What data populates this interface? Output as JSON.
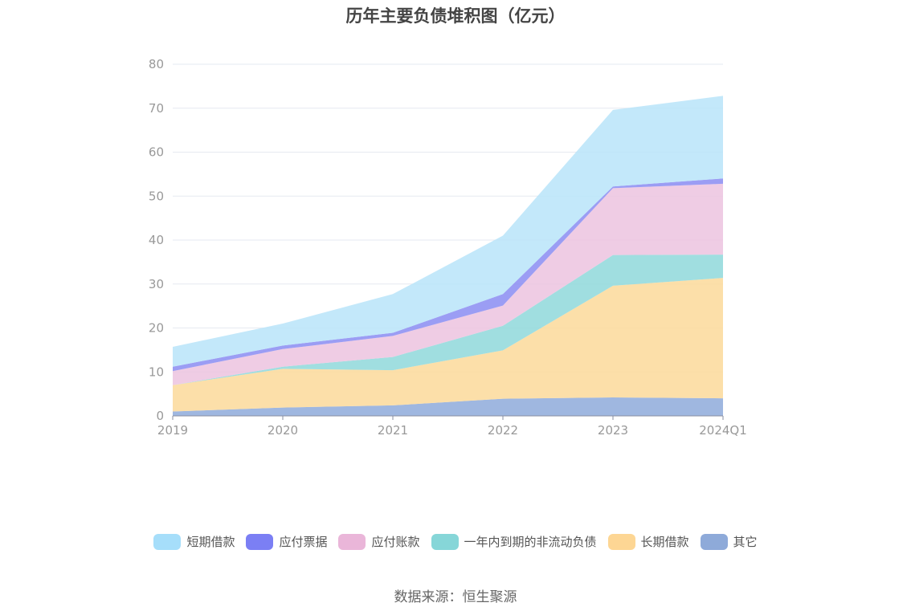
{
  "chart_data": {
    "type": "area",
    "stacked": true,
    "title": "历年主要负债堆积图（亿元）",
    "categories": [
      "2019",
      "2020",
      "2021",
      "2022",
      "2023",
      "2024Q1"
    ],
    "ylim": [
      0,
      80
    ],
    "yticks": [
      0,
      10,
      20,
      30,
      40,
      50,
      60,
      70,
      80
    ],
    "xlabel": "",
    "ylabel": "",
    "grid": true,
    "legend_position": "bottom",
    "series": [
      {
        "name": "其它",
        "color": "#8eaadb",
        "values": [
          1.0,
          1.9,
          2.4,
          3.9,
          4.2,
          4.0
        ]
      },
      {
        "name": "长期借款",
        "color": "#fcd99a",
        "values": [
          6.0,
          8.8,
          8.0,
          11.0,
          25.4,
          27.4
        ]
      },
      {
        "name": "一年内到期的非流动负债",
        "color": "#8fd8da",
        "values": [
          0.0,
          0.5,
          3.0,
          5.6,
          7.0,
          5.3
        ]
      },
      {
        "name": "应付账款",
        "color": "#ecc3df",
        "values": [
          3.2,
          4.0,
          4.8,
          4.6,
          15.2,
          16.1
        ]
      },
      {
        "name": "应付票据",
        "color": "#8a8cf2",
        "values": [
          1.0,
          0.8,
          0.7,
          2.6,
          0.4,
          1.2
        ]
      },
      {
        "name": "短期借款",
        "color": "#b8e4f9",
        "values": [
          4.5,
          5.0,
          8.8,
          13.3,
          17.4,
          18.8
        ]
      }
    ]
  },
  "legend": [
    {
      "name": "短期借款",
      "color": "#a6defa"
    },
    {
      "name": "应付票据",
      "color": "#7b7ff4"
    },
    {
      "name": "应付账款",
      "color": "#eab6d9"
    },
    {
      "name": "一年内到期的非流动负债",
      "color": "#86d6d8"
    },
    {
      "name": "长期借款",
      "color": "#fdd694"
    },
    {
      "name": "其它",
      "color": "#8eaad9"
    }
  ],
  "source": "数据来源：恒生聚源"
}
